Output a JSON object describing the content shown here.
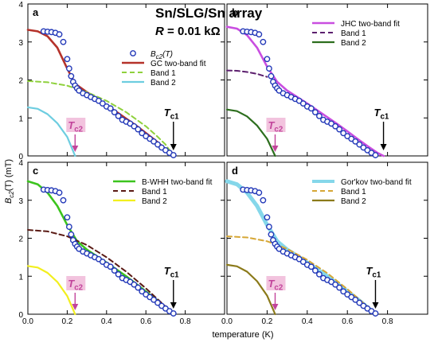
{
  "figure": {
    "main_title": "Sn/SLG/Sn array",
    "subtitle": "R = 0.01 kΩ",
    "xlabel": "temperature (K)",
    "ylabel": "B_c2(T) (mT)",
    "xticks": [
      "0.0",
      "0.2",
      "0.4",
      "0.6",
      "0.8"
    ],
    "yticks": [
      "0",
      "1",
      "2",
      "3",
      "4"
    ],
    "tc1_label": "T_c1",
    "tc2_label": "T_c2",
    "tc1_color": "#000000",
    "tc2_color": "#c2449b",
    "tc2_bg": "#f2c3de",
    "data_marker_color": "#2238b8"
  },
  "chart_data": [
    {
      "panel": "a",
      "type": "scatter",
      "xlim": [
        0,
        1.0
      ],
      "ylim": [
        0,
        4
      ],
      "grid": false,
      "legend_position": "top-right",
      "tc1": 0.74,
      "tc2": 0.24,
      "data_label": "B_c2(T)",
      "data": {
        "x": [
          0.08,
          0.1,
          0.12,
          0.14,
          0.16,
          0.18,
          0.2,
          0.21,
          0.22,
          0.23,
          0.24,
          0.25,
          0.26,
          0.28,
          0.3,
          0.32,
          0.34,
          0.36,
          0.38,
          0.4,
          0.42,
          0.44,
          0.46,
          0.48,
          0.5,
          0.52,
          0.54,
          0.56,
          0.58,
          0.6,
          0.62,
          0.64,
          0.66,
          0.68,
          0.7,
          0.72,
          0.74
        ],
        "y": [
          3.28,
          3.27,
          3.26,
          3.24,
          3.2,
          3.0,
          2.55,
          2.3,
          2.1,
          1.95,
          1.85,
          1.78,
          1.72,
          1.65,
          1.6,
          1.55,
          1.5,
          1.45,
          1.38,
          1.3,
          1.25,
          1.15,
          1.05,
          0.95,
          0.9,
          0.85,
          0.78,
          0.7,
          0.6,
          0.52,
          0.45,
          0.38,
          0.3,
          0.22,
          0.15,
          0.08,
          0.02
        ]
      },
      "series": [
        {
          "name": "GC two-band fit",
          "style": "solid",
          "color": "#b5322a",
          "width": 2.6,
          "x": [
            0,
            0.05,
            0.1,
            0.15,
            0.2,
            0.24,
            0.3,
            0.35,
            0.4,
            0.45,
            0.5,
            0.55,
            0.6,
            0.65,
            0.7,
            0.74
          ],
          "y": [
            3.32,
            3.28,
            3.15,
            2.85,
            2.3,
            1.9,
            1.68,
            1.5,
            1.33,
            1.16,
            0.98,
            0.8,
            0.6,
            0.4,
            0.18,
            0.0
          ]
        },
        {
          "name": "Band 1",
          "style": "dashed",
          "color": "#8fd13d",
          "width": 2.0,
          "x": [
            0,
            0.1,
            0.2,
            0.3,
            0.4,
            0.5,
            0.6,
            0.65,
            0.7,
            0.74
          ],
          "y": [
            1.97,
            1.94,
            1.85,
            1.68,
            1.45,
            1.15,
            0.78,
            0.55,
            0.3,
            0.0
          ]
        },
        {
          "name": "Band 2",
          "style": "solid",
          "color": "#6dcde0",
          "width": 2.2,
          "x": [
            0,
            0.05,
            0.1,
            0.15,
            0.2,
            0.24
          ],
          "y": [
            1.28,
            1.24,
            1.1,
            0.86,
            0.5,
            0.0
          ]
        }
      ]
    },
    {
      "panel": "b",
      "type": "scatter",
      "xlim": [
        0,
        1.0
      ],
      "ylim": [
        0,
        4
      ],
      "grid": false,
      "legend_position": "top-right",
      "tc1": 0.78,
      "tc2": 0.24,
      "data": {
        "x": [
          0.08,
          0.1,
          0.12,
          0.14,
          0.16,
          0.18,
          0.2,
          0.21,
          0.22,
          0.23,
          0.24,
          0.25,
          0.26,
          0.28,
          0.3,
          0.32,
          0.34,
          0.36,
          0.38,
          0.4,
          0.42,
          0.44,
          0.46,
          0.48,
          0.5,
          0.52,
          0.54,
          0.56,
          0.58,
          0.6,
          0.62,
          0.64,
          0.66,
          0.68,
          0.7,
          0.72,
          0.74
        ],
        "y": [
          3.28,
          3.27,
          3.26,
          3.24,
          3.2,
          3.0,
          2.55,
          2.3,
          2.1,
          1.95,
          1.85,
          1.78,
          1.72,
          1.65,
          1.6,
          1.55,
          1.5,
          1.45,
          1.38,
          1.3,
          1.25,
          1.15,
          1.05,
          0.95,
          0.9,
          0.85,
          0.78,
          0.7,
          0.6,
          0.52,
          0.45,
          0.38,
          0.3,
          0.22,
          0.15,
          0.08,
          0.02
        ]
      },
      "series": [
        {
          "name": "JHC two-band fit",
          "style": "solid",
          "color": "#c94ee0",
          "width": 2.6,
          "x": [
            0,
            0.05,
            0.1,
            0.15,
            0.2,
            0.25,
            0.3,
            0.35,
            0.4,
            0.45,
            0.5,
            0.55,
            0.6,
            0.65,
            0.7,
            0.75,
            0.78
          ],
          "y": [
            3.4,
            3.35,
            3.18,
            2.85,
            2.35,
            1.95,
            1.72,
            1.55,
            1.38,
            1.2,
            1.02,
            0.84,
            0.65,
            0.45,
            0.26,
            0.08,
            0.0
          ]
        },
        {
          "name": "Band 1",
          "style": "dashed",
          "color": "#5c1f6e",
          "width": 2.0,
          "x": [
            0,
            0.05,
            0.1,
            0.15,
            0.2
          ],
          "y": [
            2.25,
            2.24,
            2.21,
            2.16,
            2.08
          ]
        },
        {
          "name": "Band 2",
          "style": "solid",
          "color": "#2d6e1e",
          "width": 2.2,
          "x": [
            0,
            0.05,
            0.1,
            0.15,
            0.2,
            0.24
          ],
          "y": [
            1.22,
            1.18,
            1.04,
            0.8,
            0.45,
            0.0
          ]
        }
      ]
    },
    {
      "panel": "c",
      "type": "scatter",
      "xlim": [
        0,
        1.0
      ],
      "ylim": [
        0,
        4
      ],
      "grid": false,
      "legend_position": "top-right",
      "tc1": 0.74,
      "tc2": 0.24,
      "data": {
        "x": [
          0.08,
          0.1,
          0.12,
          0.14,
          0.16,
          0.18,
          0.2,
          0.21,
          0.22,
          0.23,
          0.24,
          0.25,
          0.26,
          0.28,
          0.3,
          0.32,
          0.34,
          0.36,
          0.38,
          0.4,
          0.42,
          0.44,
          0.46,
          0.48,
          0.5,
          0.52,
          0.54,
          0.56,
          0.58,
          0.6,
          0.62,
          0.64,
          0.66,
          0.68,
          0.7,
          0.72,
          0.74
        ],
        "y": [
          3.28,
          3.27,
          3.26,
          3.24,
          3.2,
          3.0,
          2.55,
          2.3,
          2.1,
          1.95,
          1.85,
          1.78,
          1.72,
          1.65,
          1.6,
          1.55,
          1.5,
          1.45,
          1.38,
          1.3,
          1.25,
          1.15,
          1.05,
          0.95,
          0.9,
          0.85,
          0.78,
          0.7,
          0.6,
          0.52,
          0.45,
          0.38,
          0.3,
          0.22,
          0.15,
          0.08,
          0.02
        ]
      },
      "series": [
        {
          "name": "B-WHH two-band fit",
          "style": "solid",
          "color": "#3cc41e",
          "width": 2.6,
          "x": [
            0,
            0.05,
            0.1,
            0.15,
            0.2,
            0.25,
            0.3,
            0.35,
            0.4,
            0.45,
            0.5,
            0.55,
            0.6,
            0.65,
            0.7,
            0.74
          ],
          "y": [
            3.5,
            3.42,
            3.2,
            2.85,
            2.35,
            1.92,
            1.7,
            1.53,
            1.36,
            1.18,
            1.0,
            0.8,
            0.6,
            0.4,
            0.18,
            0.0
          ]
        },
        {
          "name": "Band 1",
          "style": "dashed",
          "color": "#5a1a14",
          "width": 2.0,
          "x": [
            0,
            0.1,
            0.2,
            0.3,
            0.4,
            0.5,
            0.6,
            0.7,
            0.74
          ],
          "y": [
            2.22,
            2.18,
            2.05,
            1.82,
            1.5,
            1.12,
            0.68,
            0.2,
            0.0
          ]
        },
        {
          "name": "Band 2",
          "style": "solid",
          "color": "#f2ef1e",
          "width": 2.2,
          "x": [
            0,
            0.05,
            0.1,
            0.15,
            0.2,
            0.24
          ],
          "y": [
            1.27,
            1.23,
            1.09,
            0.85,
            0.48,
            0.0
          ]
        }
      ]
    },
    {
      "panel": "d",
      "type": "scatter",
      "xlim": [
        0,
        1.0
      ],
      "ylim": [
        0,
        4
      ],
      "grid": false,
      "legend_position": "top-right",
      "tc1": 0.74,
      "tc2": 0.24,
      "data": {
        "x": [
          0.08,
          0.1,
          0.12,
          0.14,
          0.16,
          0.18,
          0.2,
          0.21,
          0.22,
          0.23,
          0.24,
          0.25,
          0.26,
          0.28,
          0.3,
          0.32,
          0.34,
          0.36,
          0.38,
          0.4,
          0.42,
          0.44,
          0.46,
          0.48,
          0.5,
          0.52,
          0.54,
          0.56,
          0.58,
          0.6,
          0.62,
          0.64,
          0.66,
          0.68,
          0.7,
          0.72,
          0.74
        ],
        "y": [
          3.28,
          3.27,
          3.26,
          3.24,
          3.2,
          3.0,
          2.55,
          2.3,
          2.1,
          1.95,
          1.85,
          1.78,
          1.72,
          1.65,
          1.6,
          1.55,
          1.5,
          1.45,
          1.38,
          1.3,
          1.25,
          1.15,
          1.05,
          0.95,
          0.9,
          0.85,
          0.78,
          0.7,
          0.6,
          0.52,
          0.45,
          0.38,
          0.3,
          0.22,
          0.15,
          0.08,
          0.02
        ]
      },
      "series": [
        {
          "name": "Gor'kov two-band fit",
          "style": "solid",
          "color": "#85d7ea",
          "width": 5.0,
          "x": [
            0,
            0.05,
            0.1,
            0.15,
            0.2,
            0.25,
            0.3,
            0.35,
            0.4,
            0.45,
            0.5,
            0.55,
            0.6,
            0.65,
            0.7,
            0.74
          ],
          "y": [
            3.5,
            3.42,
            3.2,
            2.85,
            2.35,
            1.92,
            1.7,
            1.53,
            1.36,
            1.18,
            1.0,
            0.8,
            0.6,
            0.4,
            0.18,
            0.0
          ]
        },
        {
          "name": "Band 1",
          "style": "dashed",
          "color": "#d6a736",
          "width": 2.0,
          "x": [
            0,
            0.1,
            0.2,
            0.3,
            0.4,
            0.5,
            0.6,
            0.7,
            0.74
          ],
          "y": [
            2.05,
            2.02,
            1.92,
            1.72,
            1.43,
            1.08,
            0.66,
            0.2,
            0.0
          ]
        },
        {
          "name": "Band 2",
          "style": "solid",
          "color": "#8b7a1a",
          "width": 2.2,
          "x": [
            0,
            0.05,
            0.1,
            0.15,
            0.2,
            0.24
          ],
          "y": [
            1.3,
            1.26,
            1.12,
            0.87,
            0.49,
            0.0
          ]
        }
      ]
    }
  ]
}
